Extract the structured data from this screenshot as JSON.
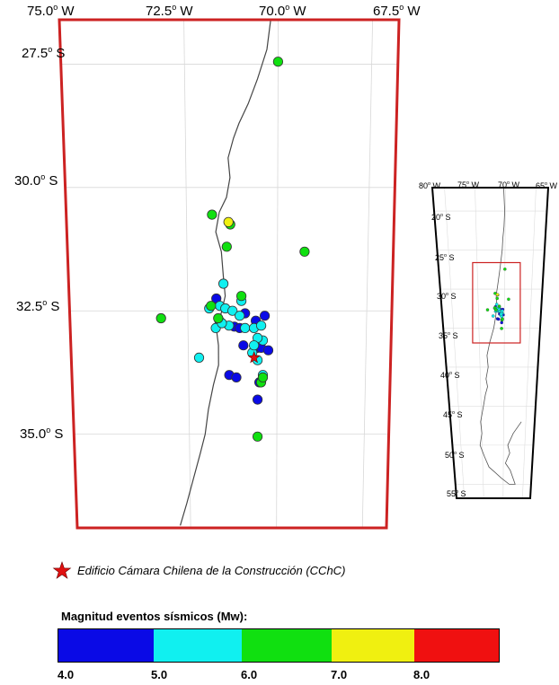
{
  "main_map": {
    "lon_labels": [
      {
        "deg": "75.0",
        "dir": "W"
      },
      {
        "deg": "72.5",
        "dir": "W"
      },
      {
        "deg": "70.0",
        "dir": "W"
      },
      {
        "deg": "67.5",
        "dir": "W"
      }
    ],
    "lat_labels": [
      {
        "deg": "27.5",
        "dir": "S"
      },
      {
        "deg": "30.0",
        "dir": "S"
      },
      {
        "deg": "32.5",
        "dir": "S"
      },
      {
        "deg": "35.0",
        "dir": "S"
      }
    ],
    "border_color": "#cc2222",
    "star_location": {
      "lon": -70.65,
      "lat": -33.45
    }
  },
  "inset_map": {
    "lon_labels": [
      {
        "deg": "80",
        "dir": "W"
      },
      {
        "deg": "75",
        "dir": "W"
      },
      {
        "deg": "70",
        "dir": "W"
      },
      {
        "deg": "65",
        "dir": "W"
      }
    ],
    "lat_labels": [
      {
        "deg": "20",
        "dir": "S"
      },
      {
        "deg": "25",
        "dir": "S"
      },
      {
        "deg": "30",
        "dir": "S"
      },
      {
        "deg": "35",
        "dir": "S"
      },
      {
        "deg": "40",
        "dir": "S"
      },
      {
        "deg": "45",
        "dir": "S"
      },
      {
        "deg": "50",
        "dir": "S"
      },
      {
        "deg": "55",
        "dir": "S"
      }
    ]
  },
  "legend": {
    "star_label": "Edificio Cámara Chilena de la Construcción (CChC)",
    "star_color": "#e01010",
    "scale_title": "Magnitud eventos sísmicos (Mw):",
    "scale_ticks": [
      "4.0",
      "5.0",
      "6.0",
      "7.0",
      "8.0"
    ],
    "scale_colors": [
      "#0a0ae6",
      "#10f0f0",
      "#10e010",
      "#f0f010",
      "#f01010"
    ]
  },
  "chart_data": {
    "type": "scatter",
    "x_label": "",
    "y_label": "",
    "series": [
      {
        "name": "Mw 4.0–5.0",
        "color": "#0a0ae6",
        "points": [
          {
            "lon": -71.7,
            "lat": -32.25
          },
          {
            "lon": -71.62,
            "lat": -32.7
          },
          {
            "lon": -71.2,
            "lat": -32.82
          },
          {
            "lon": -70.9,
            "lat": -32.55
          },
          {
            "lon": -70.35,
            "lat": -32.6
          },
          {
            "lon": -70.6,
            "lat": -32.7
          },
          {
            "lon": -70.55,
            "lat": -33.25
          },
          {
            "lon": -70.45,
            "lat": -33.25
          },
          {
            "lon": -70.25,
            "lat": -33.3
          },
          {
            "lon": -70.95,
            "lat": -33.2
          },
          {
            "lon": -71.35,
            "lat": -33.8
          },
          {
            "lon": -71.15,
            "lat": -33.85
          },
          {
            "lon": -70.55,
            "lat": -34.3
          },
          {
            "lon": -70.5,
            "lat": -33.95
          },
          {
            "lon": -71.05,
            "lat": -32.85
          }
        ]
      },
      {
        "name": "Mw 5.0–6.0",
        "color": "#10f0f0",
        "points": [
          {
            "lon": -71.5,
            "lat": -31.95
          },
          {
            "lon": -71.9,
            "lat": -32.45
          },
          {
            "lon": -71.6,
            "lat": -32.4
          },
          {
            "lon": -71.45,
            "lat": -32.45
          },
          {
            "lon": -71.72,
            "lat": -32.85
          },
          {
            "lon": -71.25,
            "lat": -32.5
          },
          {
            "lon": -71.35,
            "lat": -32.8
          },
          {
            "lon": -71.05,
            "lat": -32.6
          },
          {
            "lon": -70.9,
            "lat": -32.85
          },
          {
            "lon": -70.65,
            "lat": -32.85
          },
          {
            "lon": -70.45,
            "lat": -32.8
          },
          {
            "lon": -70.4,
            "lat": -33.1
          },
          {
            "lon": -70.7,
            "lat": -33.35
          },
          {
            "lon": -70.55,
            "lat": -33.5
          },
          {
            "lon": -70.4,
            "lat": -33.8
          },
          {
            "lon": -72.2,
            "lat": -33.45
          },
          {
            "lon": -71.0,
            "lat": -32.3
          },
          {
            "lon": -70.55,
            "lat": -33.05
          },
          {
            "lon": -71.55,
            "lat": -32.75
          },
          {
            "lon": -70.65,
            "lat": -33.2
          }
        ]
      },
      {
        "name": "Mw 6.0–7.0",
        "color": "#10e010",
        "points": [
          {
            "lon": -70.0,
            "lat": -27.45
          },
          {
            "lon": -71.8,
            "lat": -30.55
          },
          {
            "lon": -71.3,
            "lat": -30.75
          },
          {
            "lon": -71.4,
            "lat": -31.2
          },
          {
            "lon": -69.25,
            "lat": -31.3
          },
          {
            "lon": -73.25,
            "lat": -32.65
          },
          {
            "lon": -71.85,
            "lat": -32.4
          },
          {
            "lon": -71.0,
            "lat": -32.2
          },
          {
            "lon": -71.65,
            "lat": -32.65
          },
          {
            "lon": -70.45,
            "lat": -33.95
          },
          {
            "lon": -70.55,
            "lat": -35.05
          },
          {
            "lon": -70.4,
            "lat": -33.85
          }
        ]
      },
      {
        "name": "Mw 7.0–8.0",
        "color": "#f0f010",
        "points": [
          {
            "lon": -71.35,
            "lat": -30.7
          }
        ]
      }
    ]
  }
}
